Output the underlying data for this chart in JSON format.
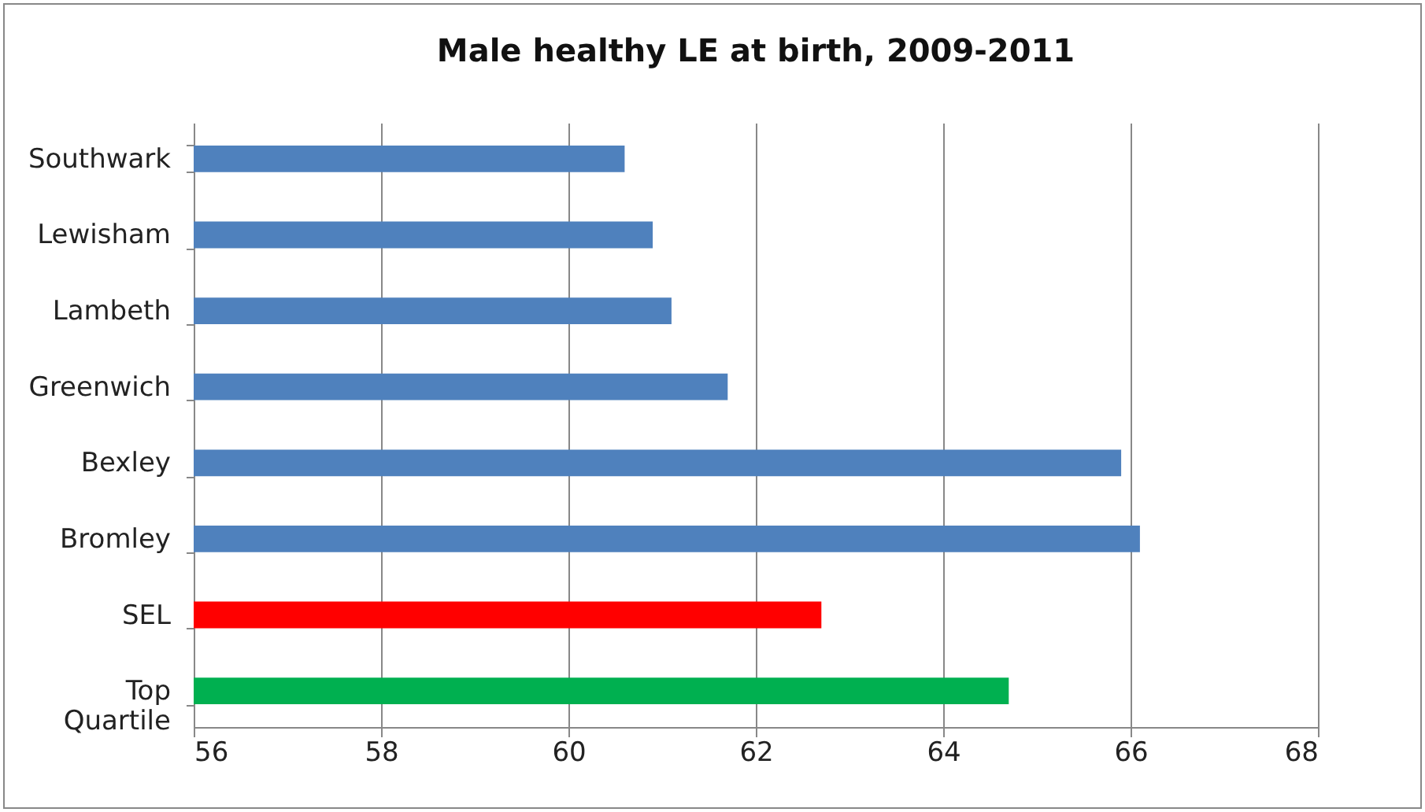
{
  "chart_data": {
    "type": "bar",
    "orientation": "horizontal",
    "title": "Male healthy LE at birth, 2009-2011",
    "categories": [
      "Southwark",
      "Lewisham",
      "Lambeth",
      "Greenwich",
      "Bexley",
      "Bromley",
      "SEL",
      "Top Quartile"
    ],
    "values": [
      60.6,
      60.9,
      61.1,
      61.7,
      65.9,
      66.1,
      62.7,
      64.7
    ],
    "colors": [
      "#4f81bd",
      "#4f81bd",
      "#4f81bd",
      "#4f81bd",
      "#4f81bd",
      "#4f81bd",
      "#ff0000",
      "#00b050"
    ],
    "xlim": [
      56,
      68
    ],
    "xticks": [
      56,
      58,
      60,
      62,
      64,
      66,
      68
    ],
    "grid": "x"
  }
}
